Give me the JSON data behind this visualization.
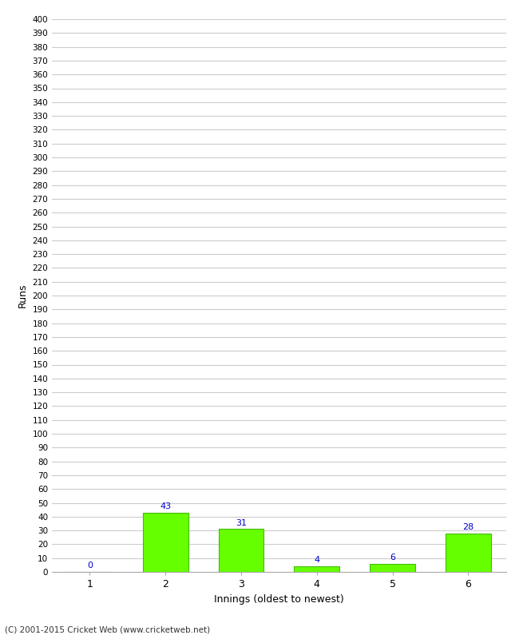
{
  "categories": [
    1,
    2,
    3,
    4,
    5,
    6
  ],
  "values": [
    0,
    43,
    31,
    4,
    6,
    28
  ],
  "bar_color": "#66ff00",
  "bar_edge_color": "#44bb00",
  "xlabel": "Innings (oldest to newest)",
  "ylabel": "Runs",
  "ylim": [
    0,
    400
  ],
  "ytick_step": 10,
  "background_color": "#ffffff",
  "grid_color": "#cccccc",
  "label_color": "#0000cc",
  "footer": "(C) 2001-2015 Cricket Web (www.cricketweb.net)"
}
